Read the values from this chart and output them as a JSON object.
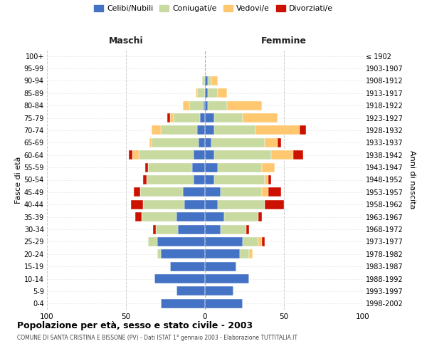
{
  "age_groups": [
    "100+",
    "95-99",
    "90-94",
    "85-89",
    "80-84",
    "75-79",
    "70-74",
    "65-69",
    "60-64",
    "55-59",
    "50-54",
    "45-49",
    "40-44",
    "35-39",
    "30-34",
    "25-29",
    "20-24",
    "15-19",
    "10-14",
    "5-9",
    "0-4"
  ],
  "birth_years": [
    "≤ 1902",
    "1903-1907",
    "1908-1912",
    "1913-1917",
    "1918-1922",
    "1923-1927",
    "1928-1932",
    "1933-1937",
    "1938-1942",
    "1943-1947",
    "1948-1952",
    "1953-1957",
    "1958-1962",
    "1963-1967",
    "1968-1972",
    "1973-1977",
    "1978-1982",
    "1983-1987",
    "1988-1992",
    "1993-1997",
    "1998-2002"
  ],
  "male_celibi": [
    0,
    0,
    0,
    0,
    1,
    3,
    5,
    4,
    7,
    8,
    7,
    14,
    13,
    18,
    17,
    30,
    28,
    22,
    32,
    18,
    28
  ],
  "male_coniugati": [
    0,
    0,
    2,
    5,
    9,
    17,
    23,
    30,
    35,
    28,
    30,
    27,
    26,
    22,
    14,
    6,
    2,
    0,
    0,
    0,
    0
  ],
  "male_vedovi": [
    0,
    0,
    0,
    1,
    4,
    2,
    6,
    1,
    4,
    0,
    0,
    0,
    0,
    0,
    0,
    0,
    0,
    0,
    0,
    0,
    0
  ],
  "male_divorziati": [
    0,
    0,
    0,
    0,
    0,
    2,
    0,
    0,
    2,
    2,
    2,
    4,
    8,
    4,
    2,
    0,
    0,
    0,
    0,
    0,
    0
  ],
  "female_celibi": [
    0,
    0,
    2,
    2,
    2,
    6,
    6,
    4,
    6,
    8,
    6,
    10,
    8,
    12,
    10,
    24,
    22,
    20,
    28,
    18,
    24
  ],
  "female_coniugati": [
    0,
    0,
    2,
    6,
    12,
    18,
    26,
    34,
    36,
    28,
    32,
    26,
    30,
    22,
    16,
    10,
    6,
    0,
    0,
    0,
    0
  ],
  "female_vedovi": [
    0,
    0,
    4,
    6,
    22,
    22,
    28,
    8,
    14,
    8,
    2,
    4,
    0,
    0,
    0,
    2,
    2,
    0,
    0,
    0,
    0
  ],
  "female_divorziati": [
    0,
    0,
    0,
    0,
    0,
    0,
    4,
    2,
    6,
    0,
    2,
    8,
    12,
    2,
    2,
    2,
    0,
    0,
    0,
    0,
    0
  ],
  "colors": {
    "celibi": "#4472c4",
    "coniugati": "#c8daa0",
    "vedovi": "#ffc870",
    "divorziati": "#cc1100"
  },
  "title": "Popolazione per età, sesso e stato civile - 2003",
  "subtitle": "COMUNE DI SANTA CRISTINA E BISSONE (PV) - Dati ISTAT 1° gennaio 2003 - Elaborazione TUTTITALIA.IT",
  "label_maschi": "Maschi",
  "label_femmine": "Femmine",
  "ylabel_left": "Fasce di età",
  "ylabel_right": "Anni di nascita",
  "xlim": 100,
  "background_color": "#ffffff",
  "grid_color": "#cccccc",
  "legend_labels": [
    "Celibi/Nubili",
    "Coniugati/e",
    "Vedovi/e",
    "Divorziati/e"
  ]
}
